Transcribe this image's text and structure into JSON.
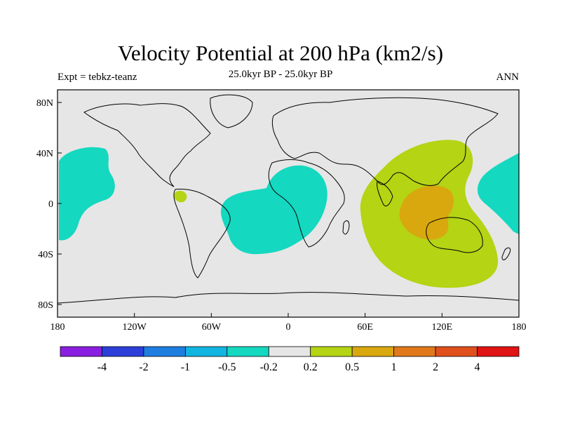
{
  "title": "Velocity Potential at 200 hPa (km2/s)",
  "left_label": "Expt = tebkz-teanz",
  "center_label": "25.0kyr BP - 25.0kyr BP",
  "right_label": "ANN",
  "chart_data": {
    "type": "contour-map",
    "projection": "cylindrical-equidistant",
    "variable": "Velocity Potential at 200 hPa",
    "units": "km2/s",
    "lon_range": [
      -180,
      180
    ],
    "lat_range": [
      -90,
      90
    ],
    "lon_ticks": [
      {
        "value": -180,
        "label": "180"
      },
      {
        "value": -120,
        "label": "120W"
      },
      {
        "value": -60,
        "label": "60W"
      },
      {
        "value": 0,
        "label": "0"
      },
      {
        "value": 60,
        "label": "60E"
      },
      {
        "value": 120,
        "label": "120E"
      },
      {
        "value": 180,
        "label": "180"
      }
    ],
    "lat_ticks": [
      {
        "value": 80,
        "label": "80N"
      },
      {
        "value": 40,
        "label": "40N"
      },
      {
        "value": 0,
        "label": "0"
      },
      {
        "value": -40,
        "label": "40S"
      },
      {
        "value": -80,
        "label": "80S"
      }
    ],
    "colorbar": {
      "levels": [
        "-4",
        "-2",
        "-1",
        "-0.5",
        "-0.2",
        "0.2",
        "0.5",
        "1",
        "2",
        "4"
      ],
      "colors": [
        "#8a1ee0",
        "#2c3fd8",
        "#1e7ee0",
        "#12b4e0",
        "#14d8c0",
        "#e6e6e6",
        "#b4d414",
        "#d8a80e",
        "#e0781c",
        "#e0501c",
        "#e01414"
      ]
    },
    "regions": [
      {
        "name": "positive-0.2-0.5-indian-ocean",
        "range": "0.2 to 0.5",
        "center_lon": 100,
        "center_lat": -5
      },
      {
        "name": "positive-0.5-1-maritime-continent",
        "range": "0.5 to 1",
        "center_lon": 115,
        "center_lat": -10
      },
      {
        "name": "negative-tropical-atlantic",
        "range": "-0.5 to -0.2",
        "center_lon": -10,
        "center_lat": -5
      },
      {
        "name": "negative-east-pacific",
        "range": "-0.5 to -0.2",
        "center_lon": -160,
        "center_lat": 10
      },
      {
        "name": "negative-west-pacific",
        "range": "-0.5 to -0.2",
        "center_lon": 170,
        "center_lat": 5
      },
      {
        "name": "positive-small-colombia",
        "range": "0.2 to 0.5",
        "center_lon": -78,
        "center_lat": 2
      }
    ]
  }
}
